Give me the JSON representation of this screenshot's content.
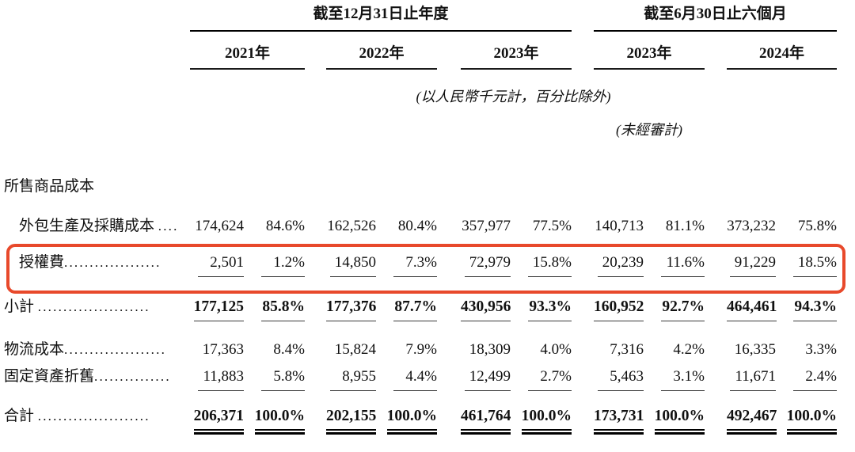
{
  "table": {
    "header": {
      "groups": [
        {
          "label": "截至12月31日止年度"
        },
        {
          "label": "截至6月30日止六個月"
        }
      ],
      "years": [
        "2021年",
        "2022年",
        "2023年",
        "2023年",
        "2024年"
      ],
      "unit_note": "(以人民幣千元計，百分比除外)",
      "unaudited_note": "(未經審計)"
    },
    "section_header": "所售商品成本",
    "rows": [
      {
        "label": "外包生產及採購成本 ",
        "dots": "....",
        "indent": true,
        "style": "plain",
        "highlighted": false,
        "values": [
          "174,624",
          "84.6%",
          "162,526",
          "80.4%",
          "357,977",
          "77.5%",
          "140,713",
          "81.1%",
          "373,232",
          "75.8%"
        ]
      },
      {
        "label": "授權費",
        "dots": "...................",
        "indent": true,
        "style": "underline",
        "highlighted": true,
        "values": [
          "2,501",
          "1.2%",
          "14,850",
          "7.3%",
          "72,979",
          "15.8%",
          "20,239",
          "11.6%",
          "91,229",
          "18.5%"
        ]
      },
      {
        "label": "小計 ",
        "dots": "......................",
        "indent": false,
        "style": "bold-underline",
        "highlighted": false,
        "values": [
          "177,125",
          "85.8%",
          "177,376",
          "87.7%",
          "430,956",
          "93.3%",
          "160,952",
          "92.7%",
          "464,461",
          "94.3%"
        ]
      },
      {
        "label": "物流成本",
        "dots": "....................",
        "indent": false,
        "style": "plain",
        "highlighted": false,
        "values": [
          "17,363",
          "8.4%",
          "15,824",
          "7.9%",
          "18,309",
          "4.0%",
          "7,316",
          "4.2%",
          "16,335",
          "3.3%"
        ]
      },
      {
        "label": "固定資產折舊",
        "dots": "...............",
        "indent": false,
        "style": "underline",
        "highlighted": false,
        "values": [
          "11,883",
          "5.8%",
          "8,955",
          "4.4%",
          "12,499",
          "2.7%",
          "5,463",
          "3.1%",
          "11,671",
          "2.4%"
        ]
      },
      {
        "label": "合計 ",
        "dots": "......................",
        "indent": false,
        "style": "bold-double",
        "highlighted": false,
        "values": [
          "206,371",
          "100.0%",
          "202,155",
          "100.0%",
          "461,764",
          "100.0%",
          "173,731",
          "100.0%",
          "492,467",
          "100.0%"
        ]
      }
    ],
    "highlight_color": "#e8492b"
  }
}
